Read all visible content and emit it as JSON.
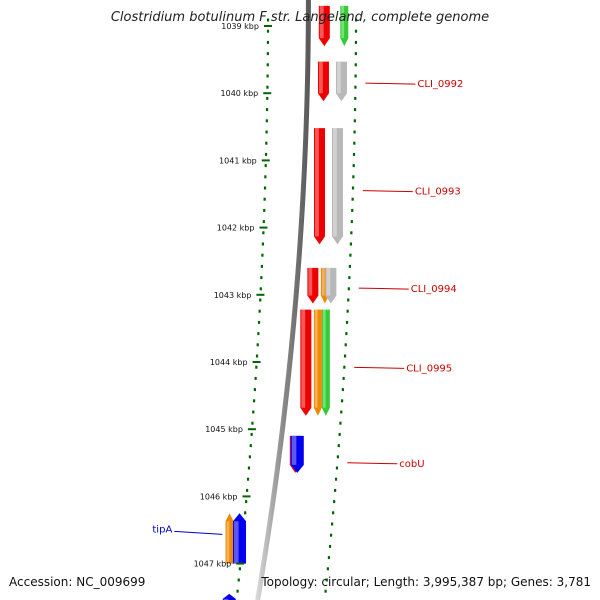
{
  "title": "Clostridium botulinum F str. Langeland, complete genome",
  "accession_text": "Accession: NC_009699",
  "summary_text": "Topology: circular; Length: 3,995,387 bp; Genes: 3,781",
  "colors": {
    "tick": "#006400",
    "backbone": "#888888",
    "red_gene": "#ee0000",
    "orange_gene": "#f08800",
    "green_gene": "#33cc33",
    "gray_gene": "#b8b8b8",
    "blue_gene": "#0000ee",
    "label_red": "#cc0000",
    "label_blue": "#0000cc"
  },
  "ticks": [
    {
      "label": "1039 kbp",
      "kb": 1039
    },
    {
      "label": "1040 kbp",
      "kb": 1040
    },
    {
      "label": "1041 kbp",
      "kb": 1041
    },
    {
      "label": "1042 kbp",
      "kb": 1042
    },
    {
      "label": "1043 kbp",
      "kb": 1043
    },
    {
      "label": "1044 kbp",
      "kb": 1044
    },
    {
      "label": "1045 kbp",
      "kb": 1045
    },
    {
      "label": "1046 kbp",
      "kb": 1046
    },
    {
      "label": "1047 kbp",
      "kb": 1047
    }
  ],
  "features": [
    {
      "track": "red",
      "start_kb": 1038.7,
      "end_kb": 1039.3,
      "strand": "-"
    },
    {
      "track": "green",
      "start_kb": 1038.7,
      "end_kb": 1039.3,
      "strand": "-"
    },
    {
      "track": "red",
      "start_kb": 1039.53,
      "end_kb": 1040.12,
      "strand": "-"
    },
    {
      "track": "gray",
      "start_kb": 1039.53,
      "end_kb": 1040.12,
      "strand": "-"
    },
    {
      "track": "red",
      "start_kb": 1040.52,
      "end_kb": 1042.25,
      "strand": "-"
    },
    {
      "track": "gray",
      "start_kb": 1040.52,
      "end_kb": 1042.25,
      "strand": "-"
    },
    {
      "track": "red",
      "start_kb": 1042.6,
      "end_kb": 1043.13,
      "strand": "-"
    },
    {
      "track": "orange",
      "start_kb": 1042.6,
      "end_kb": 1043.13,
      "strand": "-"
    },
    {
      "track": "gray",
      "start_kb": 1042.6,
      "end_kb": 1043.13,
      "strand": "-"
    },
    {
      "track": "red",
      "start_kb": 1043.22,
      "end_kb": 1044.8,
      "strand": "-"
    },
    {
      "track": "orange",
      "start_kb": 1043.22,
      "end_kb": 1044.8,
      "strand": "-"
    },
    {
      "track": "green",
      "start_kb": 1043.22,
      "end_kb": 1044.8,
      "strand": "-"
    },
    {
      "track": "red",
      "start_kb": 1045.1,
      "end_kb": 1045.65,
      "strand": "-"
    },
    {
      "track": "blue",
      "start_kb": 1045.1,
      "end_kb": 1045.65,
      "strand": "-"
    },
    {
      "track": "orange",
      "start_kb": 1046.25,
      "end_kb": 1047.0,
      "strand": "+"
    },
    {
      "track": "blue",
      "start_kb": 1046.25,
      "end_kb": 1047.0,
      "strand": "+"
    },
    {
      "track": "blue",
      "start_kb": 1047.45,
      "end_kb": 1047.7,
      "strand": "+"
    }
  ],
  "gene_labels": [
    {
      "text": "CLI_0992",
      "kb": 1039.85,
      "side": "right",
      "color": "red"
    },
    {
      "text": "CLI_0993",
      "kb": 1041.45,
      "side": "right",
      "color": "red"
    },
    {
      "text": "CLI_0994",
      "kb": 1042.9,
      "side": "right",
      "color": "red"
    },
    {
      "text": "CLI_0995",
      "kb": 1044.08,
      "side": "right",
      "color": "red"
    },
    {
      "text": "cobU",
      "kb": 1045.5,
      "side": "right",
      "color": "red"
    },
    {
      "text": "tipA",
      "kb": 1046.55,
      "side": "left",
      "color": "blue"
    }
  ]
}
